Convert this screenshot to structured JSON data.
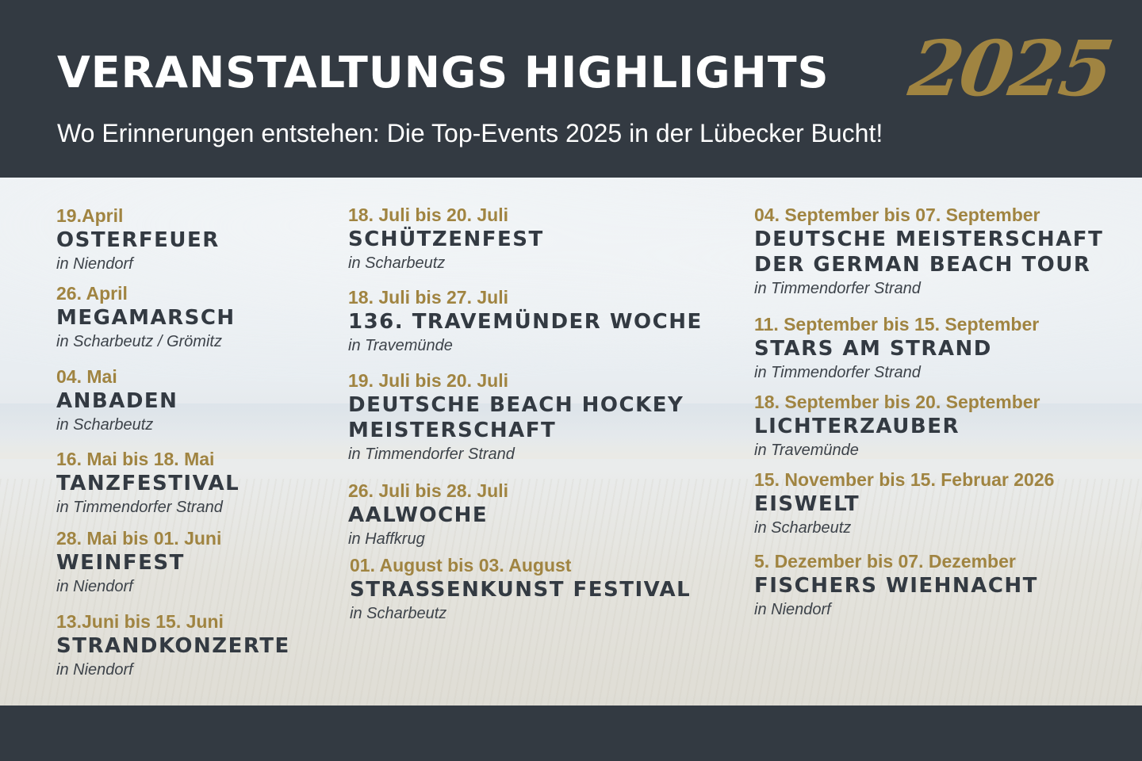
{
  "header": {
    "title": "VERANSTALTUNGS HIGHLIGHTS",
    "year": "2025",
    "subtitle": "Wo Erinnerungen entstehen: Die Top-Events 2025 in der Lübecker Bucht!"
  },
  "events": [
    {
      "date": "19.April",
      "name": "OSTERFEUER",
      "location": "in Niendorf"
    },
    {
      "date": "26. April",
      "name": "MEGAMARSCH",
      "location": "in Scharbeutz / Grömitz"
    },
    {
      "date": "04. Mai",
      "name": "ANBADEN",
      "location": "in Scharbeutz"
    },
    {
      "date": "16. Mai bis 18. Mai",
      "name": "TANZFESTIVAL",
      "location": "in Timmendorfer Strand"
    },
    {
      "date": "28. Mai bis 01. Juni",
      "name": "WEINFEST",
      "location": "in Niendorf"
    },
    {
      "date": "13.Juni bis 15. Juni",
      "name": "STRANDKONZERTE",
      "location": "in Niendorf"
    },
    {
      "date": "18. Juli bis 20. Juli",
      "name": "SCHÜTZENFEST",
      "location": "in Scharbeutz"
    },
    {
      "date": "18. Juli bis 27. Juli",
      "name": "136. TRAVEMÜNDER WOCHE",
      "location": "in Travemünde"
    },
    {
      "date": "19. Juli bis 20. Juli",
      "name": "DEUTSCHE BEACH HOCKEY",
      "name2": "MEISTERSCHAFT",
      "location": "in Timmendorfer Strand"
    },
    {
      "date": "26. Juli bis 28. Juli",
      "name": "AALWOCHE",
      "location": "in Haffkrug"
    },
    {
      "date": "01. August bis 03. August",
      "name": "STRASSENKUNST FESTIVAL",
      "location": "in Scharbeutz"
    },
    {
      "date": "04. September bis 07. September",
      "name": "DEUTSCHE MEISTERSCHAFT",
      "name2": "DER GERMAN BEACH TOUR",
      "location": "in Timmendorfer Strand"
    },
    {
      "date": "11. September bis 15. September",
      "name": "STARS AM STRAND",
      "location": "in Timmendorfer Strand"
    },
    {
      "date": "18. September bis 20. September",
      "name": "LICHTERZAUBER",
      "location": "in Travemünde"
    },
    {
      "date": "15. November bis 15. Februar 2026",
      "name": "EISWELT",
      "location": "in Scharbeutz"
    },
    {
      "date": "5. Dezember bis 07. Dezember",
      "name": "FISCHERS WIEHNACHT",
      "location": "in Niendorf"
    }
  ]
}
